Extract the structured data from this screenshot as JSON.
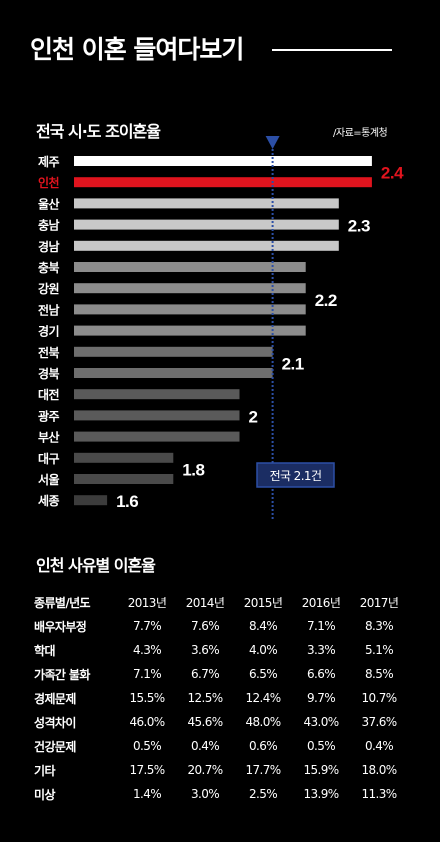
{
  "header": {
    "title": "인천 이혼 들여다보기"
  },
  "chart_data": [
    {
      "type": "bar",
      "orientation": "horizontal",
      "title": "전국 시·도 조이혼율",
      "source": "/자료=통계청",
      "categories": [
        "제주",
        "인천",
        "울산",
        "충남",
        "경남",
        "충북",
        "강원",
        "전남",
        "경기",
        "전북",
        "경북",
        "대전",
        "광주",
        "부산",
        "대구",
        "서울",
        "세종"
      ],
      "values": [
        2.4,
        2.4,
        2.3,
        2.3,
        2.3,
        2.2,
        2.2,
        2.2,
        2.2,
        2.1,
        2.1,
        2.0,
        2.0,
        2.0,
        1.8,
        1.8,
        1.6
      ],
      "group_labels": [
        "2.4",
        "2.3",
        "2.2",
        "2.1",
        "2",
        "1.8",
        "1.6"
      ],
      "reference_line": {
        "value": 2.1,
        "label": "전국 2.1건"
      },
      "colors": {
        "highlight": "#e1141e",
        "top": "#ffffff",
        "value_2.3": "#c8c8c8",
        "value_2.2": "#8c8c8c",
        "value_2.1": "#6e6e6e",
        "value_2": "#5a5a5a",
        "value_1.8": "#4a4a4a",
        "value_1.6": "#3c3c3c",
        "reference": "#2c4fa6"
      },
      "highlight_category": "인천"
    },
    {
      "type": "table",
      "title": "인천 사유별 이혼율",
      "columns": [
        "종류별/년도",
        "2013년",
        "2014년",
        "2015년",
        "2016년",
        "2017년"
      ],
      "rows": [
        [
          "배우자부정",
          "7.7%",
          "7.6%",
          "8.4%",
          "7.1%",
          "8.3%"
        ],
        [
          "학대",
          "4.3%",
          "3.6%",
          "4.0%",
          "3.3%",
          "5.1%"
        ],
        [
          "가족간 불화",
          "7.1%",
          "6.7%",
          "6.5%",
          "6.6%",
          "8.5%"
        ],
        [
          "경제문제",
          "15.5%",
          "12.5%",
          "12.4%",
          "9.7%",
          "10.7%"
        ],
        [
          "성격차이",
          "46.0%",
          "45.6%",
          "48.0%",
          "43.0%",
          "37.6%"
        ],
        [
          "건강문제",
          "0.5%",
          "0.4%",
          "0.6%",
          "0.5%",
          "0.4%"
        ],
        [
          "기타",
          "17.5%",
          "20.7%",
          "17.7%",
          "15.9%",
          "18.0%"
        ],
        [
          "미상",
          "1.4%",
          "3.0%",
          "2.5%",
          "13.9%",
          "11.3%"
        ]
      ]
    }
  ]
}
